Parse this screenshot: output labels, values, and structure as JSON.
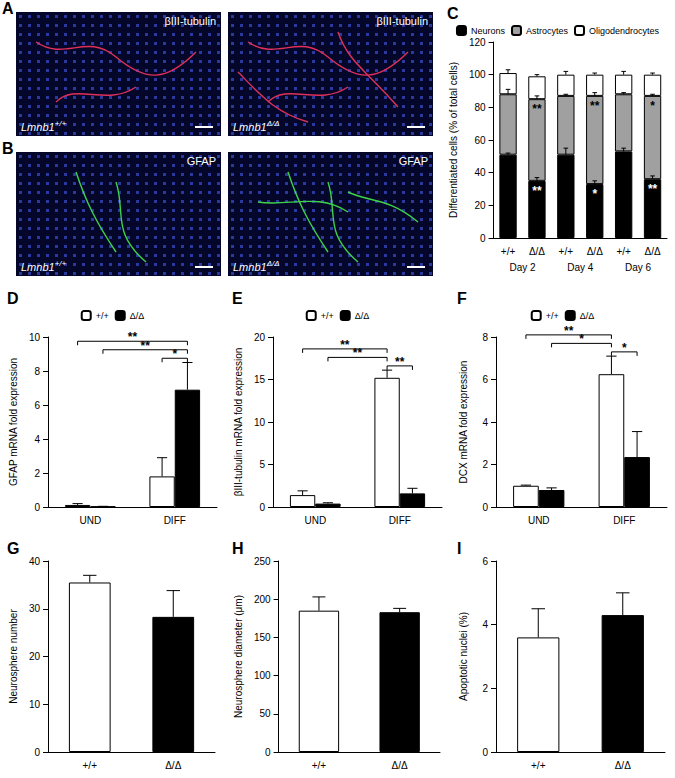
{
  "images": [
    {
      "title": "A",
      "panels": [
        {
          "stain": "βIII-tubulin",
          "gene": "Lmnb1",
          "genotype": "+/+"
        },
        {
          "stain": "βIII-tubulin",
          "gene": "Lmnb1",
          "genotype": "Δ/Δ"
        }
      ]
    },
    {
      "title": "B",
      "panels": [
        {
          "stain": "GFAP",
          "gene": "Lmnb1",
          "genotype": "+/+"
        },
        {
          "stain": "GFAP",
          "gene": "Lmnb1",
          "genotype": "Δ/Δ"
        }
      ]
    }
  ],
  "chart_data": [
    {
      "title": "C",
      "type": "bar",
      "stacked": true,
      "categories": [
        "+/+",
        "Δ/Δ",
        "+/+",
        "Δ/Δ",
        "+/+",
        "Δ/Δ"
      ],
      "group_labels": [
        "Day 2",
        "Day 4",
        "Day 6"
      ],
      "ylabel": "Differentiated cells (% of total cells)",
      "ylim": [
        0,
        120
      ],
      "yticks": [
        0,
        20,
        40,
        60,
        80,
        100,
        120
      ],
      "grid": false,
      "legend": "top",
      "series": [
        {
          "name": "Neurons",
          "color": "#000000",
          "values": [
            51,
            35,
            51,
            33,
            53,
            36
          ],
          "errors": [
            1,
            2,
            4,
            2,
            2,
            2
          ]
        },
        {
          "name": "Astrocytes",
          "color": "#a0a0a0",
          "values": [
            37,
            50,
            36,
            54,
            35,
            51
          ],
          "errors": [
            3,
            2,
            1,
            2,
            1,
            1
          ]
        },
        {
          "name": "Oligodendrocytes",
          "color": "#ffffff",
          "values": [
            13,
            14,
            13,
            13,
            12,
            13
          ],
          "errors": [
            2,
            1,
            2,
            1,
            2,
            1
          ]
        }
      ],
      "annotations": [
        {
          "series": "Astrocytes",
          "index": 1,
          "text": "**"
        },
        {
          "series": "Neurons",
          "index": 1,
          "text": "**"
        },
        {
          "series": "Astrocytes",
          "index": 3,
          "text": "**"
        },
        {
          "series": "Neurons",
          "index": 3,
          "text": "*"
        },
        {
          "series": "Astrocytes",
          "index": 5,
          "text": "*"
        },
        {
          "series": "Neurons",
          "index": 5,
          "text": "**"
        }
      ]
    },
    {
      "title": "D",
      "type": "bar",
      "categories": [
        "UND",
        "DIFF"
      ],
      "ylabel": "GFAP mRNA fold expression",
      "ylim": [
        0,
        10
      ],
      "yticks": [
        0,
        2,
        4,
        6,
        8,
        10
      ],
      "grid": false,
      "legend": "top",
      "series": [
        {
          "name": "+/+",
          "color": "#ffffff",
          "values": [
            0.12,
            1.8
          ],
          "errors": [
            0.08,
            1.1
          ]
        },
        {
          "name": "Δ/Δ",
          "color": "#000000",
          "values": [
            0.03,
            6.9
          ],
          "errors": [
            0.01,
            1.6
          ]
        }
      ],
      "comparisons": [
        {
          "from": [
            "UND",
            "+/+"
          ],
          "to": [
            "DIFF",
            "Δ/Δ"
          ],
          "text": "**"
        },
        {
          "from": [
            "UND",
            "Δ/Δ"
          ],
          "to": [
            "DIFF",
            "Δ/Δ"
          ],
          "text": "**"
        },
        {
          "from": [
            "DIFF",
            "+/+"
          ],
          "to": [
            "DIFF",
            "Δ/Δ"
          ],
          "text": "*"
        }
      ]
    },
    {
      "title": "E",
      "type": "bar",
      "categories": [
        "UND",
        "DIFF"
      ],
      "ylabel": "βIII-tubulin mRNA fold expression",
      "ylim": [
        0,
        20
      ],
      "yticks": [
        0,
        5,
        10,
        15,
        20
      ],
      "grid": false,
      "legend": "top",
      "series": [
        {
          "name": "+/+",
          "color": "#ffffff",
          "values": [
            1.4,
            15.2
          ],
          "errors": [
            0.5,
            0.9
          ]
        },
        {
          "name": "Δ/Δ",
          "color": "#000000",
          "values": [
            0.4,
            1.6
          ],
          "errors": [
            0.1,
            0.6
          ]
        }
      ],
      "comparisons": [
        {
          "from": [
            "UND",
            "+/+"
          ],
          "to": [
            "DIFF",
            "+/+"
          ],
          "text": "**"
        },
        {
          "from": [
            "UND",
            "Δ/Δ"
          ],
          "to": [
            "DIFF",
            "+/+"
          ],
          "text": "**"
        },
        {
          "from": [
            "DIFF",
            "+/+"
          ],
          "to": [
            "DIFF",
            "Δ/Δ"
          ],
          "text": "**"
        }
      ]
    },
    {
      "title": "F",
      "type": "bar",
      "categories": [
        "UND",
        "DIFF"
      ],
      "ylabel": "DCX mRNA fold expression",
      "ylim": [
        0,
        8
      ],
      "yticks": [
        0,
        2,
        4,
        6,
        8
      ],
      "grid": false,
      "legend": "top",
      "series": [
        {
          "name": "+/+",
          "color": "#ffffff",
          "values": [
            1.0,
            6.25
          ],
          "errors": [
            0.03,
            0.85
          ]
        },
        {
          "name": "Δ/Δ",
          "color": "#000000",
          "values": [
            0.8,
            2.35
          ],
          "errors": [
            0.1,
            1.2
          ]
        }
      ],
      "comparisons": [
        {
          "from": [
            "UND",
            "+/+"
          ],
          "to": [
            "DIFF",
            "+/+"
          ],
          "text": "**"
        },
        {
          "from": [
            "UND",
            "Δ/Δ"
          ],
          "to": [
            "DIFF",
            "+/+"
          ],
          "text": "*"
        },
        {
          "from": [
            "DIFF",
            "+/+"
          ],
          "to": [
            "DIFF",
            "Δ/Δ"
          ],
          "text": "*"
        }
      ]
    },
    {
      "title": "G",
      "type": "bar",
      "categories": [
        "+/+",
        "Δ/Δ"
      ],
      "values": [
        35.5,
        28.3
      ],
      "errors": [
        1.5,
        5.5
      ],
      "colors": [
        "#ffffff",
        "#000000"
      ],
      "ylabel": "Neurosphere number",
      "ylim": [
        0,
        40
      ],
      "yticks": [
        0,
        10,
        20,
        30,
        40
      ],
      "grid": false
    },
    {
      "title": "H",
      "type": "bar",
      "categories": [
        "+/+",
        "Δ/Δ"
      ],
      "values": [
        185,
        183
      ],
      "errors": [
        18,
        5
      ],
      "colors": [
        "#ffffff",
        "#000000"
      ],
      "ylabel": "Neurosphere diameter (μm)",
      "ylim": [
        0,
        250
      ],
      "yticks": [
        0,
        50,
        100,
        150,
        200,
        250
      ],
      "grid": false
    },
    {
      "title": "I",
      "type": "bar",
      "categories": [
        "+/+",
        "Δ/Δ"
      ],
      "values": [
        3.6,
        4.3
      ],
      "errors": [
        0.9,
        0.7
      ],
      "colors": [
        "#ffffff",
        "#000000"
      ],
      "ylabel": "Apoptotic nuclei (%)",
      "ylim": [
        0,
        6
      ],
      "yticks": [
        0,
        2,
        4,
        6
      ],
      "grid": false
    }
  ]
}
